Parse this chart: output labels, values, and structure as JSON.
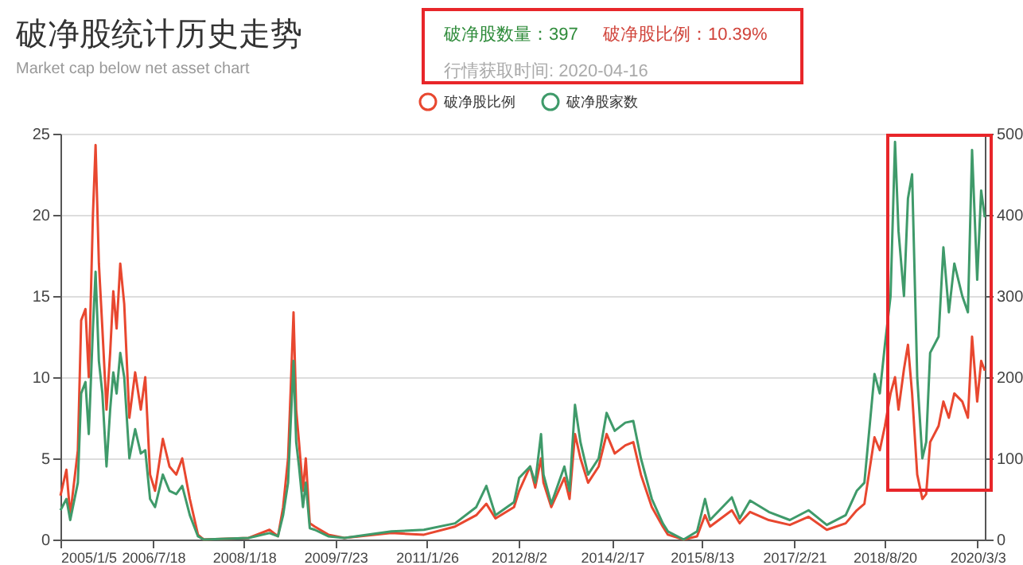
{
  "chart_data": {
    "type": "line",
    "title": "破净股统计历史走势",
    "subtitle": "Market cap below net asset chart",
    "annotations": [
      "破净股数量：397",
      "破净股比例：10.39%",
      "行情获取时间: 2020-04-16"
    ],
    "x": [
      "2005-01-05",
      "2005-02-10",
      "2005-03-05",
      "2005-04-20",
      "2005-05-10",
      "2005-06-05",
      "2005-06-25",
      "2005-07-20",
      "2005-08-05",
      "2005-08-25",
      "2005-09-15",
      "2005-10-10",
      "2005-11-01",
      "2005-11-20",
      "2005-12-10",
      "2006-01-01",
      "2006-01-25",
      "2006-02-25",
      "2006-04-01",
      "2006-05-05",
      "2006-06-01",
      "2006-06-30",
      "2006-07-30",
      "2006-09-15",
      "2006-10-25",
      "2006-12-05",
      "2007-01-10",
      "2007-02-25",
      "2007-04-15",
      "2007-05-20",
      "2008-02-15",
      "2008-06-20",
      "2008-08-10",
      "2008-09-10",
      "2008-10-10",
      "2008-10-25",
      "2008-11-12",
      "2008-11-28",
      "2008-12-15",
      "2009-01-08",
      "2009-01-25",
      "2009-02-18",
      "2009-03-20",
      "2009-06-10",
      "2009-09-15",
      "2010-06-25",
      "2011-01-08",
      "2011-07-15",
      "2011-11-20",
      "2012-01-20",
      "2012-03-15",
      "2012-07-05",
      "2012-08-05",
      "2012-10-10",
      "2012-11-10",
      "2012-12-15",
      "2012-12-30",
      "2013-02-15",
      "2013-05-05",
      "2013-06-05",
      "2013-07-08",
      "2013-08-10",
      "2013-09-25",
      "2013-11-28",
      "2014-01-15",
      "2014-03-05",
      "2014-05-08",
      "2014-06-25",
      "2014-08-10",
      "2014-10-15",
      "2014-12-20",
      "2015-01-20",
      "2015-04-25",
      "2015-07-15",
      "2015-09-01",
      "2015-10-01",
      "2016-02-10",
      "2016-03-28",
      "2016-05-30",
      "2016-09-20",
      "2017-01-25",
      "2017-05-18",
      "2017-09-05",
      "2017-12-28",
      "2018-03-05",
      "2018-04-20",
      "2018-06-20",
      "2018-07-22",
      "2018-08-22",
      "2018-09-25",
      "2018-10-22",
      "2018-11-12",
      "2018-12-15",
      "2019-01-08",
      "2019-02-02",
      "2019-03-05",
      "2019-04-05",
      "2019-04-28",
      "2019-05-22",
      "2019-07-12",
      "2019-08-10",
      "2019-09-12",
      "2019-10-15",
      "2019-12-02",
      "2020-01-05",
      "2020-01-30",
      "2020-03-01",
      "2020-03-25",
      "2020-04-16"
    ],
    "series": [
      {
        "name": "破净股比例",
        "color": "#e8472f",
        "values": [
          2.7,
          4.3,
          1.5,
          5.5,
          13.5,
          14.2,
          10,
          20,
          24.3,
          17,
          13,
          8,
          11.5,
          15.3,
          13,
          17,
          14.5,
          7.5,
          10.3,
          8,
          10,
          4,
          3,
          6.2,
          4.5,
          4,
          5,
          2.5,
          0.3,
          0,
          0.1,
          0.6,
          0.2,
          2,
          5,
          9,
          14,
          8,
          6,
          3,
          5,
          1,
          0.8,
          0.3,
          0.1,
          0.4,
          0.3,
          0.8,
          1.5,
          2.2,
          1.3,
          2,
          3,
          4.5,
          3.2,
          5,
          3.5,
          2,
          3.8,
          2.5,
          6.5,
          5,
          3.5,
          4.5,
          6.5,
          5.3,
          5.8,
          6,
          4,
          2,
          0.8,
          0.3,
          0,
          0.2,
          1.5,
          0.8,
          1.8,
          1,
          1.7,
          1.2,
          0.9,
          1.4,
          0.6,
          1,
          1.8,
          2.2,
          6.3,
          5.5,
          7,
          9,
          10,
          8,
          10.5,
          12,
          9,
          4,
          2.5,
          2.8,
          6,
          7,
          8.5,
          7.5,
          9,
          8.5,
          7.5,
          12.5,
          8.5,
          11,
          10.4
        ]
      },
      {
        "name": "破净股家数",
        "color": "#3f9a6a",
        "axis": "y2",
        "values": [
          36,
          50,
          24,
          70,
          180,
          194,
          130,
          260,
          330,
          220,
          180,
          90,
          160,
          206,
          180,
          230,
          200,
          100,
          136,
          106,
          110,
          50,
          40,
          80,
          60,
          56,
          66,
          30,
          4,
          0,
          2,
          8,
          4,
          30,
          70,
          140,
          220,
          120,
          90,
          40,
          70,
          14,
          12,
          4,
          2,
          10,
          12,
          20,
          40,
          66,
          30,
          46,
          76,
          90,
          70,
          130,
          80,
          44,
          90,
          60,
          166,
          120,
          80,
          100,
          156,
          134,
          144,
          146,
          100,
          50,
          20,
          10,
          0,
          10,
          50,
          24,
          52,
          26,
          48,
          34,
          24,
          36,
          18,
          30,
          60,
          70,
          204,
          180,
          240,
          300,
          490,
          380,
          300,
          420,
          450,
          200,
          100,
          120,
          230,
          250,
          360,
          280,
          340,
          300,
          280,
          480,
          320,
          430,
          397
        ]
      }
    ],
    "xlim": [
      "2005-01-05",
      "2020-04-16"
    ],
    "xticks": [
      {
        "value": "2005-01-05",
        "label": "2005/1/5"
      },
      {
        "value": "2006-07-18",
        "label": "2006/7/18"
      },
      {
        "value": "2008-01-18",
        "label": "2008/1/18"
      },
      {
        "value": "2009-07-23",
        "label": "2009/7/23"
      },
      {
        "value": "2011-01-26",
        "label": "2011/1/26"
      },
      {
        "value": "2012-08-02",
        "label": "2012/8/2"
      },
      {
        "value": "2014-02-17",
        "label": "2014/2/17"
      },
      {
        "value": "2015-08-13",
        "label": "2015/8/13"
      },
      {
        "value": "2017-02-21",
        "label": "2017/2/21"
      },
      {
        "value": "2018-08-20",
        "label": "2018/8/20"
      },
      {
        "value": "2020-03-03",
        "label": "2020/3/3"
      }
    ],
    "ylim": [
      0,
      25
    ],
    "yticks": [
      0,
      5,
      10,
      15,
      20,
      25
    ],
    "y2lim": [
      0,
      500
    ],
    "y2ticks": [
      0,
      100,
      200,
      300,
      400,
      500
    ],
    "grid": "y",
    "legend": "top"
  }
}
